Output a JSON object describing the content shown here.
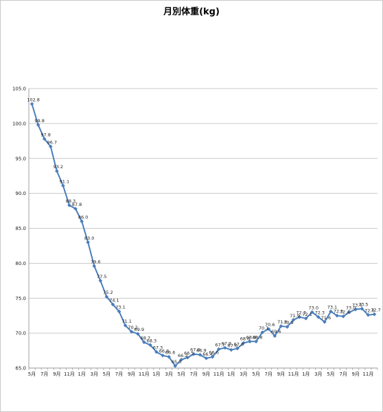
{
  "chart_data": {
    "type": "line",
    "title": "月別体重(kg)",
    "xlabel": "",
    "ylabel": "",
    "ylim": [
      65.0,
      105.0
    ],
    "ytick_labels": [
      "65.0",
      "70.0",
      "75.0",
      "80.0",
      "85.0",
      "90.0",
      "95.0",
      "100.0",
      "105.0"
    ],
    "grid": true,
    "legend": "none",
    "line_color": "#4a7ebb",
    "categories": [
      "5月",
      "6月",
      "7月",
      "8月",
      "9月",
      "10月",
      "11月",
      "12月",
      "1月",
      "2月",
      "3月",
      "4月",
      "5月",
      "6月",
      "7月",
      "8月",
      "9月",
      "10月",
      "11月",
      "12月",
      "1月",
      "2月",
      "3月",
      "4月",
      "5月",
      "6月",
      "7月",
      "8月",
      "9月",
      "10月",
      "11月",
      "12月",
      "1月",
      "2月",
      "3月",
      "4月",
      "5月",
      "6月",
      "7月",
      "8月",
      "9月",
      "10月",
      "11月",
      "12月",
      "1月",
      "2月",
      "3月",
      "4月",
      "5月",
      "6月",
      "7月",
      "8月",
      "9月",
      "10月",
      "11月",
      "12月"
    ],
    "xtick_labels": [
      "5月",
      "7月",
      "9月",
      "11月",
      "1月",
      "3月",
      "5月",
      "7月",
      "9月",
      "11月",
      "1月",
      "3月",
      "5月",
      "7月",
      "9月",
      "11月",
      "1月",
      "3月",
      "5月",
      "7月",
      "9月",
      "11月",
      "1月",
      "3月",
      "5月",
      "7月",
      "9月",
      "11月"
    ],
    "series": [
      {
        "values": [
          102.8,
          99.8,
          97.8,
          96.7,
          93.2,
          91.1,
          88.3,
          87.8,
          86.0,
          83.0,
          79.6,
          77.5,
          75.2,
          74.1,
          73.1,
          71.1,
          70.2,
          69.9,
          68.7,
          68.3,
          67.3,
          66.8,
          66.6,
          65.3,
          66.2,
          66.5,
          67.0,
          66.9,
          66.4,
          66.6,
          67.7,
          67.9,
          67.6,
          67.8,
          68.6,
          68.8,
          68.8,
          70.1,
          70.6,
          69.6,
          71.0,
          70.9,
          71.9,
          72.3,
          72.1,
          73.0,
          72.3,
          71.6,
          73.1,
          72.5,
          72.4,
          73.0,
          73.4,
          73.5,
          72.6,
          72.7
        ],
        "labels": [
          "102.8",
          "99.8",
          "97.8",
          "96.7",
          "93.2",
          "91.1",
          "88.3",
          "87.8",
          "86.0",
          "83.0",
          "79.6",
          "77.5",
          "75.2",
          "74.1",
          "73.1",
          "71.1",
          "70.2",
          "69.9",
          "68.7",
          "68.3",
          "67.3",
          "66.8",
          "66.6",
          "65.3",
          "66.2",
          "66.5",
          "67.0",
          "66.9",
          "66.4",
          "66.6",
          "67.7",
          "67.9",
          "67.6",
          "67.8",
          "68.6",
          "68.8",
          "68.8",
          "70.1",
          "70.6",
          "69.6",
          "71.0",
          "70.9",
          "71.9",
          "72.3",
          "72.1",
          "73.0",
          "72.3",
          "71.6",
          "73.1",
          "72.5",
          "72.4",
          "73.0",
          "73.4",
          "73.5",
          "72.6",
          "72.7"
        ]
      }
    ]
  }
}
